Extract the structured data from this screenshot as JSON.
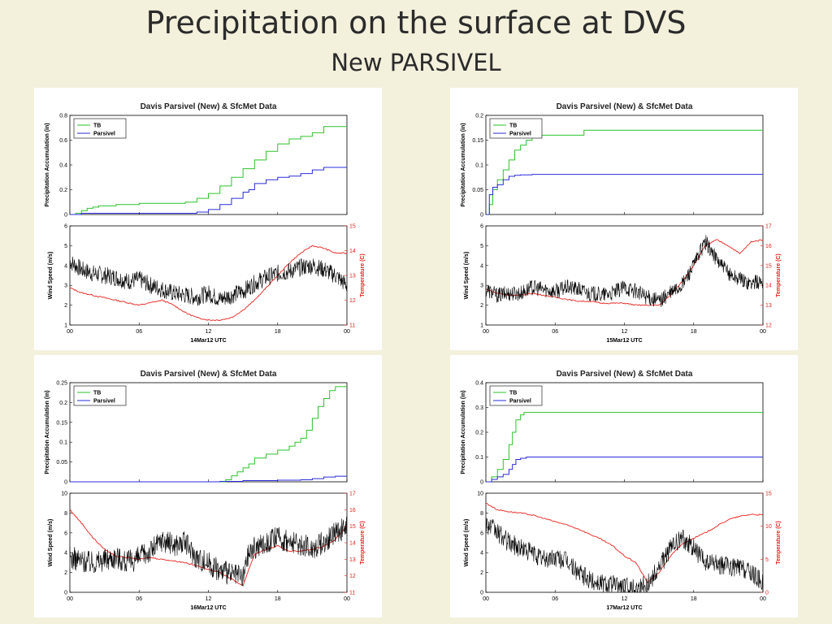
{
  "slide": {
    "title": "Precipitation on the surface at DVS",
    "subtitle": "New PARSIVEL"
  },
  "colors": {
    "tb": "#2ec22e",
    "parsivel": "#2b2bd9",
    "wind": "#000000",
    "temperature": "#e8211c"
  },
  "chart_data": [
    {
      "type": "line",
      "title": "Davis Parsivel (New) & SfcMet Data",
      "xlabel": "14Mar12 UTC",
      "x_ticks": [
        "00",
        "06",
        "12",
        "18",
        "00"
      ],
      "x_range_hours": [
        0,
        24
      ],
      "top": {
        "ylabel": "Precipitation Accumulation (in)",
        "ylim": [
          0,
          0.8
        ],
        "yticks": [
          "0",
          "0.2",
          "0.4",
          "0.6",
          "0.8"
        ],
        "legend": [
          "TB",
          "Parsivel"
        ],
        "series": [
          {
            "name": "TB",
            "x": [
              0,
              0.5,
              1,
              1.5,
              2,
              2.5,
              3,
              4,
              5,
              6,
              7,
              8,
              9,
              10,
              11,
              12,
              13,
              14,
              15,
              16,
              17,
              18,
              19,
              20,
              21,
              22,
              23,
              24
            ],
            "values": [
              0,
              0.01,
              0.03,
              0.05,
              0.06,
              0.07,
              0.07,
              0.08,
              0.08,
              0.09,
              0.09,
              0.09,
              0.09,
              0.1,
              0.13,
              0.17,
              0.23,
              0.3,
              0.37,
              0.44,
              0.51,
              0.57,
              0.61,
              0.63,
              0.66,
              0.71,
              0.71,
              0.71
            ]
          },
          {
            "name": "Parsivel",
            "x": [
              0,
              1,
              2,
              4,
              6,
              8,
              9,
              10,
              11,
              12,
              13,
              14,
              15,
              15.5,
              16,
              17,
              18,
              19,
              20,
              21,
              22,
              23,
              24
            ],
            "values": [
              0,
              0.01,
              0.01,
              0.01,
              0.01,
              0.01,
              0.01,
              0.01,
              0.02,
              0.04,
              0.08,
              0.13,
              0.18,
              0.2,
              0.25,
              0.28,
              0.3,
              0.31,
              0.33,
              0.36,
              0.38,
              0.38,
              0.38
            ]
          }
        ]
      },
      "bottom": {
        "ylabel": "Wind Speed (m/s)",
        "ylim": [
          1,
          6
        ],
        "yticks": [
          "1",
          "2",
          "3",
          "4",
          "5",
          "6"
        ],
        "y2label": "Temperature (C)",
        "y2lim": [
          11,
          15
        ],
        "y2ticks": [
          "11",
          "12",
          "13",
          "14",
          "15"
        ],
        "wind": {
          "x": [
            0,
            1,
            2,
            3,
            4,
            5,
            6,
            7,
            8,
            9,
            10,
            11,
            12,
            13,
            14,
            15,
            16,
            17,
            18,
            19,
            20,
            21,
            22,
            23,
            24
          ],
          "values": [
            4.2,
            3.8,
            3.6,
            3.5,
            3.4,
            3.2,
            3.3,
            3.0,
            2.8,
            2.6,
            2.5,
            2.4,
            2.6,
            2.3,
            2.5,
            2.7,
            3.1,
            3.4,
            3.6,
            3.7,
            3.9,
            4.0,
            3.8,
            3.5,
            3.0
          ],
          "noise": 0.45
        },
        "temperature": {
          "x": [
            0,
            1,
            2,
            3,
            4,
            5,
            6,
            7,
            8,
            9,
            10,
            11,
            12,
            13,
            14,
            15,
            16,
            17,
            18,
            19,
            20,
            21,
            22,
            23,
            24
          ],
          "values": [
            12.5,
            12.3,
            12.2,
            12.1,
            12.0,
            11.9,
            11.8,
            11.9,
            12.0,
            11.8,
            11.5,
            11.3,
            11.2,
            11.2,
            11.3,
            11.6,
            12.0,
            12.5,
            13.0,
            13.5,
            13.9,
            14.2,
            14.1,
            13.9,
            13.9
          ]
        }
      }
    },
    {
      "type": "line",
      "title": "Davis Parsivel (New) & SfcMet Data",
      "xlabel": "15Mar12 UTC",
      "x_ticks": [
        "00",
        "06",
        "12",
        "18",
        "00"
      ],
      "x_range_hours": [
        0,
        24
      ],
      "top": {
        "ylabel": "Precipitation Accumulation (in)",
        "ylim": [
          0,
          0.2
        ],
        "yticks": [
          "0",
          "0.05",
          "0.1",
          "0.15",
          "0.2"
        ],
        "legend": [
          "TB",
          "Parsivel"
        ],
        "series": [
          {
            "name": "TB",
            "x": [
              0,
              0.3,
              0.6,
              1,
              1.5,
              2,
              2.5,
              3,
              3.5,
              4,
              5,
              6,
              7,
              8,
              8.5,
              9,
              10,
              12,
              15,
              18,
              21,
              24
            ],
            "values": [
              0,
              0.02,
              0.05,
              0.07,
              0.09,
              0.11,
              0.13,
              0.14,
              0.15,
              0.16,
              0.16,
              0.16,
              0.16,
              0.16,
              0.17,
              0.17,
              0.17,
              0.17,
              0.17,
              0.17,
              0.17,
              0.17
            ]
          },
          {
            "name": "Parsivel",
            "x": [
              0,
              0.3,
              0.6,
              1,
              1.5,
              2,
              2.5,
              3,
              4,
              5,
              6,
              9,
              12,
              18,
              24
            ],
            "values": [
              0,
              0.04,
              0.055,
              0.06,
              0.07,
              0.077,
              0.079,
              0.08,
              0.081,
              0.081,
              0.081,
              0.081,
              0.081,
              0.081,
              0.081
            ]
          }
        ]
      },
      "bottom": {
        "ylabel": "Wind Speed (m/s)",
        "ylim": [
          1,
          6
        ],
        "yticks": [
          "1",
          "2",
          "3",
          "4",
          "5",
          "6"
        ],
        "y2label": "Temperature (C)",
        "y2lim": [
          12,
          17
        ],
        "y2ticks": [
          "12",
          "13",
          "14",
          "15",
          "16",
          "17"
        ],
        "wind": {
          "x": [
            0,
            1,
            2,
            3,
            4,
            5,
            6,
            7,
            8,
            9,
            10,
            11,
            12,
            13,
            14,
            15,
            16,
            17,
            18,
            19,
            20,
            21,
            22,
            23,
            24
          ],
          "values": [
            2.8,
            2.5,
            2.6,
            2.6,
            2.9,
            2.8,
            2.7,
            2.9,
            2.8,
            2.6,
            2.5,
            2.6,
            2.9,
            2.7,
            2.4,
            2.2,
            2.6,
            3.0,
            4.0,
            5.2,
            4.3,
            3.6,
            3.3,
            3.1,
            3.2
          ],
          "noise": 0.4
        },
        "temperature": {
          "x": [
            0,
            1,
            2,
            3,
            4,
            5,
            6,
            7,
            8,
            9,
            10,
            11,
            12,
            13,
            14,
            15,
            16,
            17,
            18,
            19,
            20,
            21,
            22,
            23,
            24
          ],
          "values": [
            13.8,
            13.6,
            13.5,
            13.5,
            13.6,
            13.5,
            13.4,
            13.3,
            13.2,
            13.2,
            13.1,
            13.1,
            13.1,
            13.0,
            13.0,
            13.0,
            13.5,
            14.2,
            15.0,
            16.0,
            16.3,
            16.0,
            15.6,
            16.2,
            16.3
          ]
        }
      }
    },
    {
      "type": "line",
      "title": "Davis Parsivel (New) & SfcMet Data",
      "xlabel": "16Mar12 UTC",
      "x_ticks": [
        "00",
        "06",
        "12",
        "18",
        "00"
      ],
      "x_range_hours": [
        0,
        24
      ],
      "top": {
        "ylabel": "Precipitation Accumulation (in)",
        "ylim": [
          0,
          0.25
        ],
        "yticks": [
          "0",
          "0.05",
          "0.1",
          "0.15",
          "0.2",
          "0.25"
        ],
        "legend": [
          "TB",
          "Parsivel"
        ],
        "series": [
          {
            "name": "TB",
            "x": [
              0,
              6,
              12,
              13,
              13.5,
              14,
              14.5,
              15,
              15.5,
              16,
              17,
              18,
              19,
              19.5,
              20,
              20.5,
              21,
              21.5,
              22,
              22.5,
              23,
              24
            ],
            "values": [
              0,
              0,
              0,
              0,
              0.005,
              0.015,
              0.025,
              0.035,
              0.045,
              0.06,
              0.07,
              0.08,
              0.09,
              0.1,
              0.11,
              0.13,
              0.16,
              0.19,
              0.21,
              0.23,
              0.24,
              0.24
            ]
          },
          {
            "name": "Parsivel",
            "x": [
              0,
              6,
              12,
              13,
              15,
              18,
              20,
              21,
              22,
              23,
              24
            ],
            "values": [
              0,
              0,
              0,
              0.001,
              0.003,
              0.004,
              0.005,
              0.008,
              0.012,
              0.014,
              0.015
            ]
          }
        ]
      },
      "bottom": {
        "ylabel": "Wind Speed (m/s)",
        "ylim": [
          0,
          10
        ],
        "yticks": [
          "0",
          "2",
          "4",
          "6",
          "8",
          "10"
        ],
        "y2label": "Temperature (C)",
        "y2lim": [
          11,
          17
        ],
        "y2ticks": [
          "11",
          "12",
          "13",
          "14",
          "15",
          "16",
          "17"
        ],
        "wind": {
          "x": [
            0,
            1,
            2,
            3,
            4,
            5,
            6,
            7,
            8,
            9,
            10,
            11,
            12,
            13,
            14,
            15,
            15.5,
            16,
            17,
            18,
            19,
            20,
            21,
            22,
            23,
            24
          ],
          "values": [
            3.5,
            3.2,
            3.0,
            3.3,
            3.6,
            3.0,
            3.5,
            4.2,
            5.3,
            4.8,
            5.0,
            3.5,
            3.0,
            2.2,
            1.8,
            1.5,
            4.0,
            4.5,
            5.0,
            5.5,
            5.0,
            4.8,
            4.5,
            5.0,
            6.0,
            6.5
          ],
          "noise": 0.6
        },
        "temperature": {
          "x": [
            0,
            1,
            2,
            3,
            4,
            5,
            6,
            7,
            8,
            9,
            10,
            11,
            12,
            13,
            14,
            15,
            15.5,
            16,
            17,
            18,
            19,
            20,
            21,
            22,
            23,
            24
          ],
          "values": [
            16.0,
            15.2,
            14.3,
            13.6,
            13.2,
            13.1,
            13.0,
            13.1,
            13.0,
            12.9,
            12.8,
            12.6,
            12.4,
            12.2,
            11.8,
            11.4,
            12.4,
            13.3,
            13.6,
            13.8,
            13.5,
            13.5,
            13.6,
            13.8,
            14.2,
            15.0
          ]
        }
      }
    },
    {
      "type": "line",
      "title": "Davis Parsivel (New) & SfcMet Data",
      "xlabel": "17Mar12 UTC",
      "x_ticks": [
        "00",
        "06",
        "12",
        "18",
        "00"
      ],
      "x_range_hours": [
        0,
        24
      ],
      "top": {
        "ylabel": "Precipitation Accumulation (in)",
        "ylim": [
          0,
          0.4
        ],
        "yticks": [
          "0",
          "0.1",
          "0.2",
          "0.3",
          "0.4"
        ],
        "legend": [
          "TB",
          "Parsivel"
        ],
        "series": [
          {
            "name": "TB",
            "x": [
              0,
              0.5,
              1,
              1.5,
              2,
              2.3,
              2.6,
              3,
              3.3,
              4,
              6,
              12,
              18,
              24
            ],
            "values": [
              0,
              0.02,
              0.05,
              0.09,
              0.15,
              0.2,
              0.25,
              0.27,
              0.28,
              0.28,
              0.28,
              0.28,
              0.28,
              0.28
            ]
          },
          {
            "name": "Parsivel",
            "x": [
              0,
              0.5,
              1,
              1.5,
              2,
              2.3,
              2.6,
              3,
              3.5,
              4,
              6,
              12,
              18,
              24
            ],
            "values": [
              0,
              0.01,
              0.02,
              0.03,
              0.05,
              0.07,
              0.09,
              0.095,
              0.1,
              0.1,
              0.1,
              0.1,
              0.1,
              0.1
            ]
          }
        ]
      },
      "bottom": {
        "ylabel": "Wind Speed (m/s)",
        "ylim": [
          0,
          10
        ],
        "yticks": [
          "0",
          "2",
          "4",
          "6",
          "8",
          "10"
        ],
        "y2label": "Temperature (C)",
        "y2lim": [
          0,
          15
        ],
        "y2ticks": [
          "0",
          "5",
          "10",
          "15"
        ],
        "wind": {
          "x": [
            0,
            1,
            2,
            3,
            4,
            5,
            6,
            7,
            8,
            9,
            10,
            11,
            12,
            13,
            14,
            15,
            16,
            17,
            18,
            19,
            20,
            21,
            22,
            23,
            24
          ],
          "values": [
            7.0,
            6.0,
            5.0,
            4.5,
            4.0,
            3.3,
            3.5,
            3.2,
            2.0,
            1.2,
            1.0,
            0.8,
            0.6,
            0.5,
            0.8,
            2.5,
            4.5,
            5.5,
            4.5,
            3.0,
            2.8,
            2.6,
            2.5,
            2.0,
            1.0
          ],
          "noise": 0.5
        },
        "temperature": {
          "x": [
            0,
            1,
            2,
            3,
            4,
            5,
            6,
            7,
            8,
            9,
            10,
            11,
            12,
            13,
            14,
            15,
            16,
            17,
            18,
            19,
            20,
            21,
            22,
            23,
            24
          ],
          "values": [
            13.5,
            12.5,
            12.2,
            12.0,
            11.7,
            11.2,
            10.7,
            10.2,
            9.6,
            8.8,
            8.0,
            7.0,
            5.5,
            4.5,
            1.5,
            3.0,
            5.5,
            7.3,
            8.2,
            9.0,
            10.0,
            11.0,
            11.5,
            11.8,
            11.7
          ]
        }
      }
    }
  ]
}
